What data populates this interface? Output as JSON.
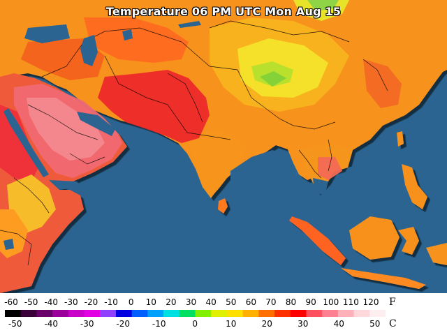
{
  "title": "Temperature 06 PM UTC Mon Aug 15",
  "colors": {
    "ocean": "#2b6490",
    "border_lines": "#000000"
  },
  "legend": {
    "f_unit": "F",
    "c_unit": "C",
    "fahrenheit_ticks": [
      "-60",
      "-50",
      "-40",
      "-30",
      "-20",
      "-10",
      "0",
      "10",
      "20",
      "30",
      "40",
      "50",
      "60",
      "70",
      "80",
      "90",
      "100",
      "110",
      "120"
    ],
    "celsius_ticks": [
      "-50",
      "-40",
      "-30",
      "-20",
      "-10",
      "0",
      "10",
      "20",
      "30",
      "40",
      "50"
    ],
    "scale_colors": [
      "#000000",
      "#3a003a",
      "#6a006a",
      "#9a009a",
      "#c800c8",
      "#e400e4",
      "#9040ff",
      "#0000e0",
      "#0060ff",
      "#00a0ff",
      "#00e0e0",
      "#00e060",
      "#80f000",
      "#e0f000",
      "#ffe000",
      "#ffb000",
      "#ff7000",
      "#ff3000",
      "#ff0000",
      "#ff5060",
      "#ff8090",
      "#ffb0b8",
      "#ffd8dc",
      "#ffeef0"
    ]
  }
}
